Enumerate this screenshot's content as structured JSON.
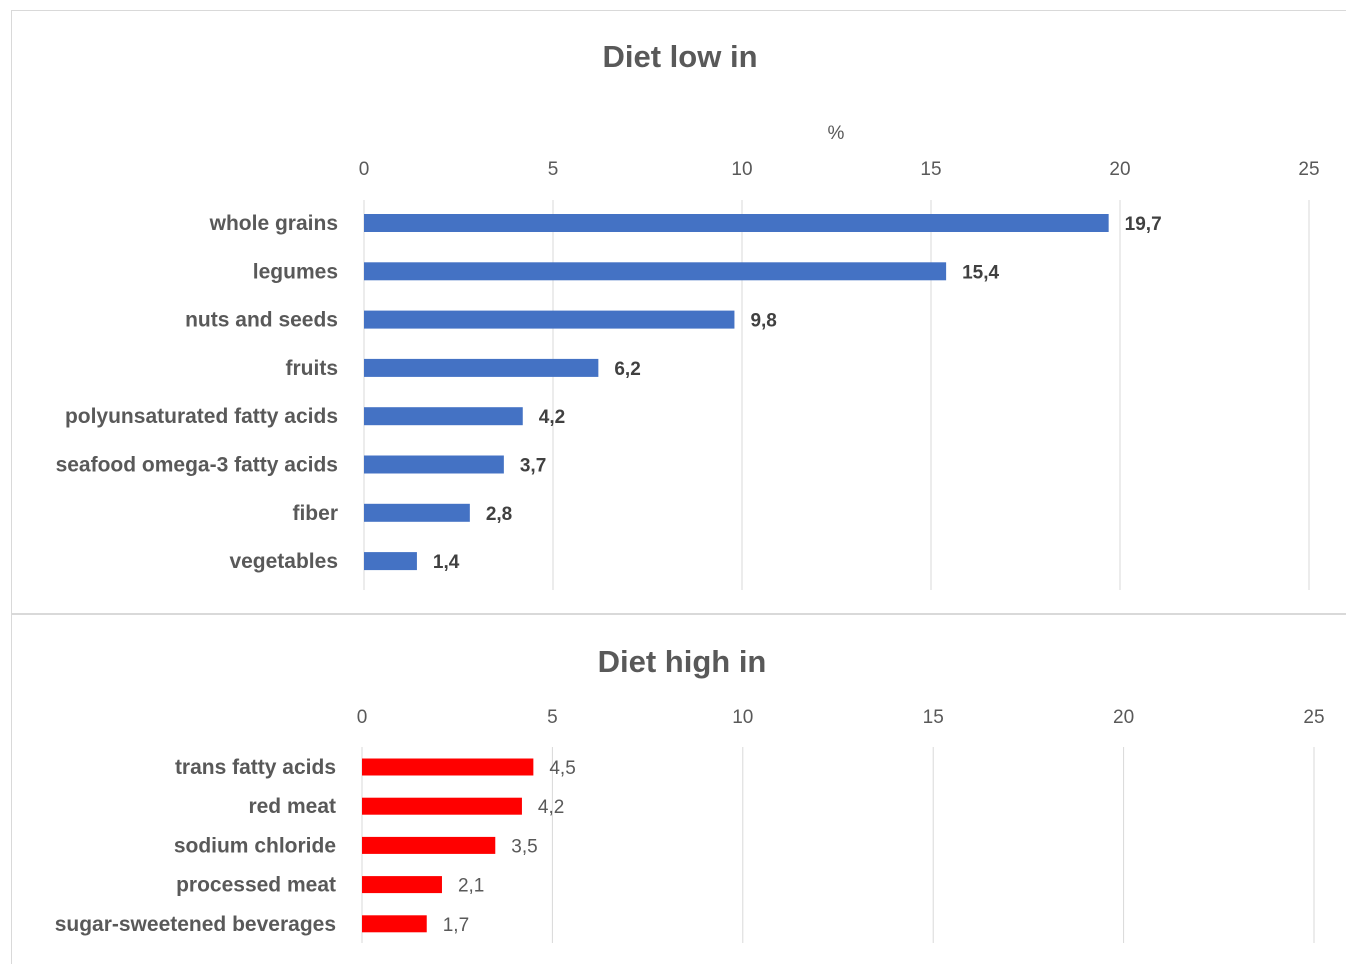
{
  "chart_data": [
    {
      "type": "bar",
      "orientation": "horizontal",
      "title": "Diet low in",
      "xlabel": "%",
      "ylabel": "",
      "xlim": [
        0,
        25
      ],
      "ticks": [
        "0",
        "5",
        "10",
        "15",
        "20",
        "25"
      ],
      "grid": true,
      "bar_color": "#4472C4",
      "label_weight": "bold",
      "categories": [
        "whole grains",
        "legumes",
        "nuts and seeds",
        "fruits",
        "polyunsaturated fatty acids",
        "seafood omega-3 fatty acids",
        "fiber",
        "vegetables"
      ],
      "values": [
        19.7,
        15.4,
        9.8,
        6.2,
        4.2,
        3.7,
        2.8,
        1.4
      ],
      "value_labels": [
        "19,7",
        "15,4",
        "9,8",
        "6,2",
        "4,2",
        "3,7",
        "2,8",
        "1,4"
      ]
    },
    {
      "type": "bar",
      "orientation": "horizontal",
      "title": "Diet high in",
      "xlabel": "",
      "ylabel": "",
      "xlim": [
        0,
        25
      ],
      "ticks": [
        "0",
        "5",
        "10",
        "15",
        "20",
        "25"
      ],
      "grid": true,
      "bar_color": "#FF0000",
      "label_weight": "normal",
      "categories": [
        "trans fatty acids",
        "red meat",
        "sodium chloride",
        "processed meat",
        "sugar-sweetened beverages"
      ],
      "values": [
        4.5,
        4.2,
        3.5,
        2.1,
        1.7
      ],
      "value_labels": [
        "4,5",
        "4,2",
        "3,5",
        "2,1",
        "1,7"
      ]
    }
  ]
}
